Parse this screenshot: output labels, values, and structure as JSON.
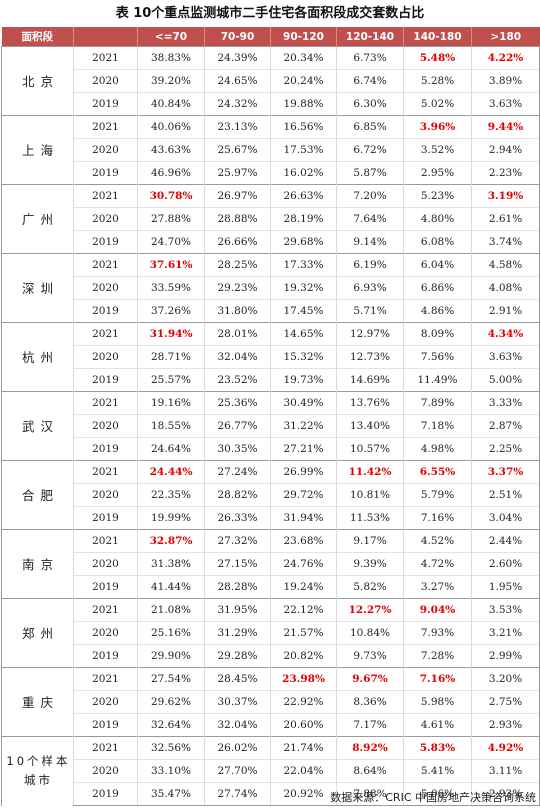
{
  "title": "表 10个重点监测城市二手住宅各面积段成交套数占比",
  "headers": [
    "面积段",
    "",
    "<=70",
    "70-90",
    "90-120",
    "120-140",
    "140-180",
    ">180"
  ],
  "source": "数据来源：CRIC 中国房地产决策咨询系统",
  "highlight_color": "#e00000",
  "header_color": "#c0504d",
  "groups": [
    {
      "city": "北京",
      "rows": [
        {
          "year": "2021",
          "values": [
            "38.83%",
            "24.39%",
            "20.34%",
            "6.73%",
            "5.48%",
            "4.22%"
          ],
          "hl": [
            4,
            5
          ]
        },
        {
          "year": "2020",
          "values": [
            "39.20%",
            "24.65%",
            "20.24%",
            "6.74%",
            "5.28%",
            "3.89%"
          ],
          "hl": []
        },
        {
          "year": "2019",
          "values": [
            "40.84%",
            "24.32%",
            "19.88%",
            "6.30%",
            "5.02%",
            "3.63%"
          ],
          "hl": []
        }
      ]
    },
    {
      "city": "上海",
      "rows": [
        {
          "year": "2021",
          "values": [
            "40.06%",
            "23.13%",
            "16.56%",
            "6.85%",
            "3.96%",
            "9.44%"
          ],
          "hl": [
            4,
            5
          ]
        },
        {
          "year": "2020",
          "values": [
            "43.63%",
            "25.67%",
            "17.53%",
            "6.72%",
            "3.52%",
            "2.94%"
          ],
          "hl": []
        },
        {
          "year": "2019",
          "values": [
            "46.96%",
            "25.97%",
            "16.02%",
            "5.87%",
            "2.95%",
            "2.23%"
          ],
          "hl": []
        }
      ]
    },
    {
      "city": "广州",
      "rows": [
        {
          "year": "2021",
          "values": [
            "30.78%",
            "26.97%",
            "26.63%",
            "7.20%",
            "5.23%",
            "3.19%"
          ],
          "hl": [
            0,
            5
          ]
        },
        {
          "year": "2020",
          "values": [
            "27.88%",
            "28.88%",
            "28.19%",
            "7.64%",
            "4.80%",
            "2.61%"
          ],
          "hl": []
        },
        {
          "year": "2019",
          "values": [
            "24.70%",
            "26.66%",
            "29.68%",
            "9.14%",
            "6.08%",
            "3.74%"
          ],
          "hl": []
        }
      ]
    },
    {
      "city": "深圳",
      "rows": [
        {
          "year": "2021",
          "values": [
            "37.61%",
            "28.25%",
            "17.33%",
            "6.19%",
            "6.04%",
            "4.58%"
          ],
          "hl": [
            0
          ]
        },
        {
          "year": "2020",
          "values": [
            "33.59%",
            "29.23%",
            "19.32%",
            "6.93%",
            "6.86%",
            "4.08%"
          ],
          "hl": []
        },
        {
          "year": "2019",
          "values": [
            "37.26%",
            "31.80%",
            "17.45%",
            "5.71%",
            "4.86%",
            "2.91%"
          ],
          "hl": []
        }
      ]
    },
    {
      "city": "杭州",
      "rows": [
        {
          "year": "2021",
          "values": [
            "31.94%",
            "28.01%",
            "14.65%",
            "12.97%",
            "8.09%",
            "4.34%"
          ],
          "hl": [
            0,
            5
          ]
        },
        {
          "year": "2020",
          "values": [
            "28.71%",
            "32.04%",
            "15.32%",
            "12.73%",
            "7.56%",
            "3.63%"
          ],
          "hl": []
        },
        {
          "year": "2019",
          "values": [
            "25.57%",
            "23.52%",
            "19.73%",
            "14.69%",
            "11.49%",
            "5.00%"
          ],
          "hl": []
        }
      ]
    },
    {
      "city": "武汉",
      "rows": [
        {
          "year": "2021",
          "values": [
            "19.16%",
            "25.36%",
            "30.49%",
            "13.76%",
            "7.89%",
            "3.33%"
          ],
          "hl": []
        },
        {
          "year": "2020",
          "values": [
            "18.55%",
            "26.77%",
            "31.22%",
            "13.40%",
            "7.18%",
            "2.87%"
          ],
          "hl": []
        },
        {
          "year": "2019",
          "values": [
            "24.64%",
            "30.35%",
            "27.21%",
            "10.57%",
            "4.98%",
            "2.25%"
          ],
          "hl": []
        }
      ]
    },
    {
      "city": "合肥",
      "rows": [
        {
          "year": "2021",
          "values": [
            "24.44%",
            "27.24%",
            "26.99%",
            "11.42%",
            "6.55%",
            "3.37%"
          ],
          "hl": [
            0,
            3,
            4,
            5
          ]
        },
        {
          "year": "2020",
          "values": [
            "22.35%",
            "28.82%",
            "29.72%",
            "10.81%",
            "5.79%",
            "2.51%"
          ],
          "hl": []
        },
        {
          "year": "2019",
          "values": [
            "19.99%",
            "26.33%",
            "31.94%",
            "11.53%",
            "7.16%",
            "3.04%"
          ],
          "hl": []
        }
      ]
    },
    {
      "city": "南京",
      "rows": [
        {
          "year": "2021",
          "values": [
            "32.87%",
            "27.32%",
            "23.68%",
            "9.17%",
            "4.52%",
            "2.44%"
          ],
          "hl": [
            0
          ]
        },
        {
          "year": "2020",
          "values": [
            "31.38%",
            "27.15%",
            "24.76%",
            "9.39%",
            "4.72%",
            "2.60%"
          ],
          "hl": []
        },
        {
          "year": "2019",
          "values": [
            "41.44%",
            "28.28%",
            "19.24%",
            "5.82%",
            "3.27%",
            "1.95%"
          ],
          "hl": []
        }
      ]
    },
    {
      "city": "郑州",
      "rows": [
        {
          "year": "2021",
          "values": [
            "21.08%",
            "31.95%",
            "22.12%",
            "12.27%",
            "9.04%",
            "3.53%"
          ],
          "hl": [
            3,
            4
          ]
        },
        {
          "year": "2020",
          "values": [
            "25.16%",
            "31.29%",
            "21.57%",
            "10.84%",
            "7.93%",
            "3.21%"
          ],
          "hl": []
        },
        {
          "year": "2019",
          "values": [
            "29.90%",
            "29.28%",
            "20.82%",
            "9.73%",
            "7.28%",
            "2.99%"
          ],
          "hl": []
        }
      ]
    },
    {
      "city": "重庆",
      "rows": [
        {
          "year": "2021",
          "values": [
            "27.54%",
            "28.45%",
            "23.98%",
            "9.67%",
            "7.16%",
            "3.20%"
          ],
          "hl": [
            2,
            3,
            4
          ]
        },
        {
          "year": "2020",
          "values": [
            "29.62%",
            "30.37%",
            "22.92%",
            "8.36%",
            "5.98%",
            "2.75%"
          ],
          "hl": []
        },
        {
          "year": "2019",
          "values": [
            "32.64%",
            "32.04%",
            "20.60%",
            "7.17%",
            "4.61%",
            "2.93%"
          ],
          "hl": []
        }
      ]
    },
    {
      "city": "10个样本城市",
      "sample": true,
      "rows": [
        {
          "year": "2021",
          "values": [
            "32.56%",
            "26.02%",
            "21.74%",
            "8.92%",
            "5.83%",
            "4.92%"
          ],
          "hl": [
            3,
            4,
            5
          ]
        },
        {
          "year": "2020",
          "values": [
            "33.10%",
            "27.70%",
            "22.04%",
            "8.64%",
            "5.41%",
            "3.11%"
          ],
          "hl": []
        },
        {
          "year": "2019",
          "values": [
            "35.47%",
            "27.74%",
            "20.92%",
            "7.88%",
            "5.06%",
            "2.93%"
          ],
          "hl": []
        }
      ]
    }
  ]
}
